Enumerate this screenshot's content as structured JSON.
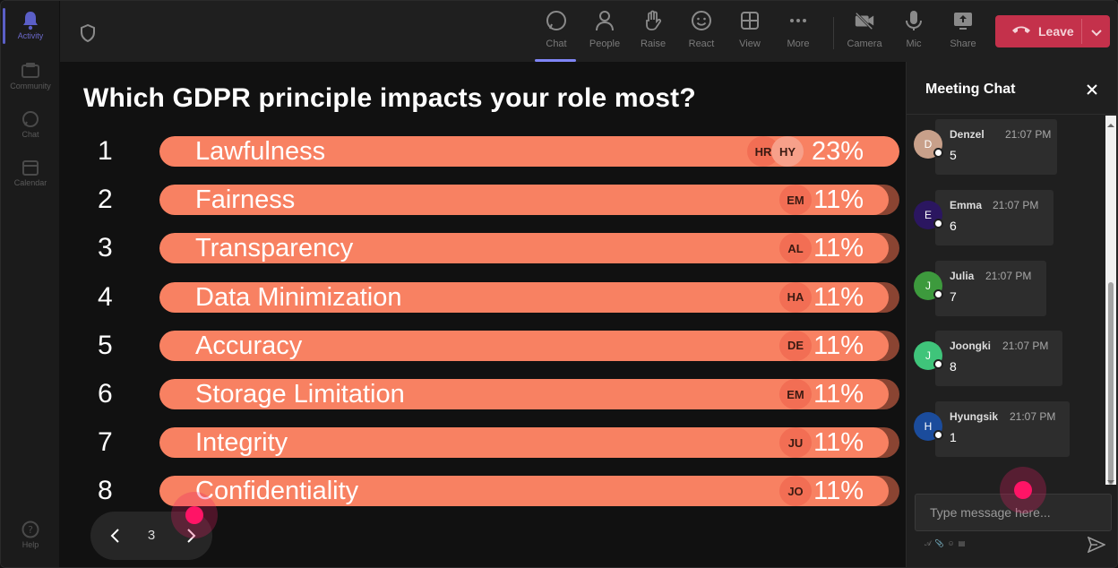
{
  "rail": {
    "items": [
      {
        "label": "Activity",
        "icon": "bell-icon"
      },
      {
        "label": "Community",
        "icon": "community-icon"
      },
      {
        "label": "Chat",
        "icon": "chat-icon"
      },
      {
        "label": "Calendar",
        "icon": "calendar-icon"
      }
    ],
    "help_label": "Help"
  },
  "toolbar": {
    "buttons": [
      {
        "label": "Chat",
        "icon": "chat-icon"
      },
      {
        "label": "People",
        "icon": "people-icon"
      },
      {
        "label": "Raise",
        "icon": "hand-icon"
      },
      {
        "label": "React",
        "icon": "smile-icon"
      },
      {
        "label": "View",
        "icon": "grid-icon"
      },
      {
        "label": "More",
        "icon": "more-icon"
      },
      {
        "label": "Camera",
        "icon": "camera-off-icon"
      },
      {
        "label": "Mic",
        "icon": "mic-icon"
      },
      {
        "label": "Share",
        "icon": "share-icon"
      }
    ],
    "leave_label": "Leave"
  },
  "poll": {
    "question": "Which GDPR principle impacts your role most?",
    "options": [
      {
        "number": "1",
        "label": "Lawfulness",
        "percent": "23%",
        "fraction": 1.0,
        "avatars": [
          "HR",
          "HY"
        ]
      },
      {
        "number": "2",
        "label": "Fairness",
        "percent": "11%",
        "fraction": 0.985,
        "avatars": [
          "EM"
        ]
      },
      {
        "number": "3",
        "label": "Transparency",
        "percent": "11%",
        "fraction": 0.985,
        "avatars": [
          "AL"
        ]
      },
      {
        "number": "4",
        "label": "Data Minimization",
        "percent": "11%",
        "fraction": 0.985,
        "avatars": [
          "HA"
        ]
      },
      {
        "number": "5",
        "label": "Accuracy",
        "percent": "11%",
        "fraction": 0.985,
        "avatars": [
          "DE"
        ]
      },
      {
        "number": "6",
        "label": "Storage Limitation",
        "percent": "11%",
        "fraction": 0.985,
        "avatars": [
          "EM"
        ]
      },
      {
        "number": "7",
        "label": "Integrity",
        "percent": "11%",
        "fraction": 0.985,
        "avatars": [
          "JU"
        ]
      },
      {
        "number": "8",
        "label": "Confidentiality",
        "percent": "11%",
        "fraction": 0.985,
        "avatars": [
          "JO"
        ]
      }
    ],
    "page": "3"
  },
  "chat": {
    "title": "Meeting Chat",
    "messages": [
      {
        "initial": "D",
        "name": "Denzel",
        "time": "21:07 PM",
        "text": "5",
        "color": "#c8a08a"
      },
      {
        "initial": "E",
        "name": "Emma",
        "time": "21:07 PM",
        "text": "6",
        "color": "#2b1660"
      },
      {
        "initial": "J",
        "name": "Julia",
        "time": "21:07 PM",
        "text": "7",
        "color": "#3d9a3d"
      },
      {
        "initial": "J",
        "name": "Joongki",
        "time": "21:07 PM",
        "text": "8",
        "color": "#3fc47a"
      },
      {
        "initial": "H",
        "name": "Hyungsik",
        "time": "21:07 PM",
        "text": "1",
        "color": "#1b4c9c"
      }
    ],
    "input_placeholder": "Type message here..."
  },
  "colors": {
    "bar_fill": "#f88162",
    "bar_track": "#8a4432",
    "leave": "#c4314b",
    "accent": "#7f85f5"
  }
}
